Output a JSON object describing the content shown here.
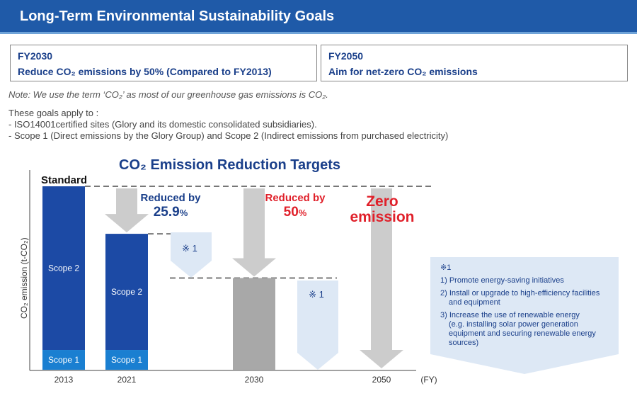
{
  "header": {
    "title": "Long-Term Environmental Sustainability Goals"
  },
  "goals": [
    {
      "year": "FY2030",
      "text": "Reduce CO₂ emissions by 50% (Compared to FY2013)"
    },
    {
      "year": "FY2050",
      "text": "Aim for net-zero CO₂ emissions"
    }
  ],
  "note": "Note: We use the term ‘CO₂’ as most of our greenhouse gas emissions is CO₂.",
  "applies": {
    "intro": "These goals apply to :",
    "items": [
      "- ISO14001certified sites (Glory and its domestic consolidated subsidiaries).",
      "- Scope 1 (Direct emissions by the Glory Group) and Scope 2 (Indirect emissions from purchased electricity)"
    ]
  },
  "chart_data": {
    "type": "bar",
    "title": "CO₂ Emission Reduction Targets",
    "ylabel": "CO₂ emission (t-CO₂)",
    "xlabel": "(FY)",
    "categories": [
      "2013",
      "2021",
      "2030",
      "2050"
    ],
    "series": [
      {
        "name": "Scope 1",
        "values": [
          10.8,
          10.8,
          null,
          null
        ]
      },
      {
        "name": "Scope 2",
        "values": [
          89.2,
          63.3,
          null,
          null
        ]
      },
      {
        "name": "",
        "values": [
          null,
          null,
          50,
          0
        ]
      }
    ],
    "standard_label": "Standard",
    "reductions": [
      {
        "line1": "Reduced by",
        "value": "25.9",
        "unit": "%",
        "color": "#1a3f8a"
      },
      {
        "line1": "Reduced by",
        "value": "50",
        "unit": "%",
        "color": "#e0202a"
      },
      {
        "line1": "Zero",
        "line2": "emission",
        "color": "#e0202a"
      }
    ],
    "marker_label": "※ 1",
    "ylim": [
      0,
      100
    ]
  },
  "footnote": {
    "title": "※1",
    "items": [
      "1) Promote energy-saving initiatives",
      "2) Install or upgrade to high-efficiency facilities",
      "and equipment",
      "3) Increase the use of renewable energy",
      "(e.g. installing solar power generation",
      "equipment and securing renewable energy",
      "sources)"
    ]
  },
  "colors": {
    "scope2": "#1c4aa5",
    "scope1": "#1a7fd1",
    "gray_bar": "#a8a8a8",
    "arrow": "#cccccc",
    "light_arrow": "#dde8f5",
    "header": "#1f5aa8"
  }
}
